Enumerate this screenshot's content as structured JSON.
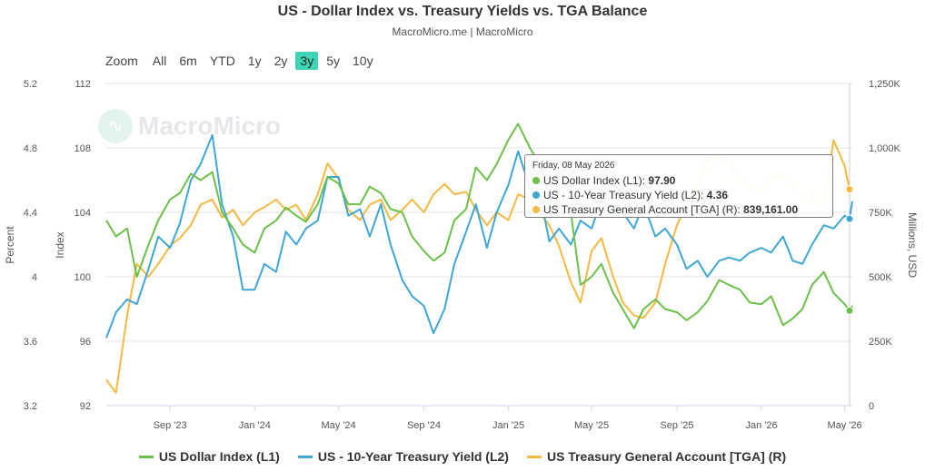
{
  "header": {
    "title": "US - Dollar Index vs. Treasury Yields vs. TGA Balance",
    "subtitle": "MacroMicro.me | MacroMicro"
  },
  "range_selector": {
    "zoom_label": "Zoom",
    "buttons": [
      "All",
      "6m",
      "YTD",
      "1y",
      "2y",
      "3y",
      "5y",
      "10y"
    ],
    "selected": "3y"
  },
  "watermark": {
    "text": "MacroMicro"
  },
  "tooltip": {
    "date": "Friday, 08 May 2026",
    "rows": [
      {
        "label": "US Dollar Index (L1):",
        "value": "97.90",
        "color": "#6cc04a"
      },
      {
        "label": "US - 10-Year Treasury Yield (L2):",
        "value": "4.36",
        "color": "#3fa7d6"
      },
      {
        "label": "US Treasury General Account [TGA] (R):",
        "value": "839,161.00",
        "color": "#f5b942"
      }
    ]
  },
  "legend": [
    {
      "label": "US Dollar Index (L1)",
      "color": "#6cc04a"
    },
    {
      "label": "US - 10-Year Treasury Yield (L2)",
      "color": "#3fa7d6"
    },
    {
      "label": "US Treasury General Account [TGA] (R)",
      "color": "#f5b942"
    }
  ],
  "chart_data": {
    "type": "line",
    "title": "US - Dollar Index vs. Treasury Yields vs. TGA Balance",
    "x_range": [
      "2023-06-01",
      "2026-05-12"
    ],
    "x_ticks": [
      {
        "date": "2023-09-01",
        "label": "Sep '23"
      },
      {
        "date": "2024-01-01",
        "label": "Jan '24"
      },
      {
        "date": "2024-05-01",
        "label": "May '24"
      },
      {
        "date": "2024-09-01",
        "label": "Sep '24"
      },
      {
        "date": "2025-01-01",
        "label": "Jan '25"
      },
      {
        "date": "2025-05-01",
        "label": "May '25"
      },
      {
        "date": "2025-09-01",
        "label": "Sep '25"
      },
      {
        "date": "2026-01-01",
        "label": "Jan '26"
      },
      {
        "date": "2026-05-01",
        "label": "May '26"
      }
    ],
    "axes": {
      "y_percent": {
        "label": "Percent",
        "min": 3.2,
        "max": 5.2,
        "ticks": [
          "3.2",
          "3.6",
          "4",
          "4.4",
          "4.8",
          "5.2"
        ]
      },
      "y_index": {
        "label": "Index",
        "min": 92,
        "max": 112,
        "ticks": [
          "92",
          "96",
          "100",
          "104",
          "108",
          "112"
        ]
      },
      "y_right": {
        "label": "Millions, USD",
        "min": 0,
        "max": 1250000,
        "ticks": [
          "0",
          "250K",
          "500K",
          "750K",
          "1,000K",
          "1,250K"
        ]
      }
    },
    "grid": true,
    "legend_position": "bottom",
    "series": [
      {
        "name": "US Dollar Index (L1)",
        "axis": "y_index",
        "color": "#6cc04a",
        "points": [
          [
            "2023-06-01",
            103.5
          ],
          [
            "2023-06-15",
            102.5
          ],
          [
            "2023-07-01",
            103.0
          ],
          [
            "2023-07-15",
            100.0
          ],
          [
            "2023-08-01",
            102.0
          ],
          [
            "2023-08-15",
            103.5
          ],
          [
            "2023-09-01",
            104.8
          ],
          [
            "2023-09-15",
            105.2
          ],
          [
            "2023-10-01",
            106.4
          ],
          [
            "2023-10-15",
            106.0
          ],
          [
            "2023-11-01",
            106.5
          ],
          [
            "2023-11-15",
            104.0
          ],
          [
            "2023-12-01",
            103.0
          ],
          [
            "2023-12-15",
            102.0
          ],
          [
            "2024-01-01",
            101.5
          ],
          [
            "2024-01-15",
            103.0
          ],
          [
            "2024-02-01",
            103.5
          ],
          [
            "2024-02-15",
            104.3
          ],
          [
            "2024-03-01",
            103.8
          ],
          [
            "2024-03-15",
            103.4
          ],
          [
            "2024-04-01",
            104.5
          ],
          [
            "2024-04-15",
            106.2
          ],
          [
            "2024-05-01",
            105.8
          ],
          [
            "2024-05-15",
            104.5
          ],
          [
            "2024-06-01",
            104.5
          ],
          [
            "2024-06-15",
            105.6
          ],
          [
            "2024-07-01",
            105.2
          ],
          [
            "2024-07-15",
            104.2
          ],
          [
            "2024-08-01",
            104.0
          ],
          [
            "2024-08-15",
            102.5
          ],
          [
            "2024-09-01",
            101.6
          ],
          [
            "2024-09-15",
            101.0
          ],
          [
            "2024-10-01",
            101.5
          ],
          [
            "2024-10-15",
            103.5
          ],
          [
            "2024-11-01",
            104.2
          ],
          [
            "2024-11-15",
            106.8
          ],
          [
            "2024-12-01",
            106.0
          ],
          [
            "2024-12-15",
            107.0
          ],
          [
            "2025-01-01",
            108.5
          ],
          [
            "2025-01-15",
            109.5
          ],
          [
            "2025-02-01",
            108.0
          ],
          [
            "2025-02-15",
            107.0
          ],
          [
            "2025-03-01",
            105.0
          ],
          [
            "2025-03-15",
            103.8
          ],
          [
            "2025-04-01",
            104.0
          ],
          [
            "2025-04-15",
            99.5
          ],
          [
            "2025-05-01",
            100.0
          ],
          [
            "2025-05-15",
            100.8
          ],
          [
            "2025-06-01",
            99.0
          ],
          [
            "2025-06-15",
            98.0
          ],
          [
            "2025-07-01",
            96.8
          ],
          [
            "2025-07-15",
            98.0
          ],
          [
            "2025-08-01",
            98.6
          ],
          [
            "2025-08-15",
            98.0
          ],
          [
            "2025-09-01",
            97.8
          ],
          [
            "2025-09-15",
            97.3
          ],
          [
            "2025-10-01",
            97.8
          ],
          [
            "2025-10-15",
            98.5
          ],
          [
            "2025-11-01",
            99.8
          ],
          [
            "2025-11-15",
            99.5
          ],
          [
            "2025-12-01",
            99.2
          ],
          [
            "2025-12-15",
            98.4
          ],
          [
            "2026-01-01",
            98.3
          ],
          [
            "2026-01-15",
            98.8
          ],
          [
            "2026-02-01",
            97.0
          ],
          [
            "2026-02-15",
            97.4
          ],
          [
            "2026-03-01",
            98.0
          ],
          [
            "2026-03-15",
            99.5
          ],
          [
            "2026-04-01",
            100.3
          ],
          [
            "2026-04-15",
            99.0
          ],
          [
            "2026-05-01",
            98.3
          ],
          [
            "2026-05-08",
            97.9
          ],
          [
            "2026-05-12",
            98.2
          ]
        ]
      },
      {
        "name": "US - 10-Year Treasury Yield (L2)",
        "axis": "y_percent",
        "color": "#3fa7d6",
        "points": [
          [
            "2023-06-01",
            3.62
          ],
          [
            "2023-06-15",
            3.78
          ],
          [
            "2023-07-01",
            3.86
          ],
          [
            "2023-07-15",
            3.83
          ],
          [
            "2023-08-01",
            4.05
          ],
          [
            "2023-08-15",
            4.25
          ],
          [
            "2023-09-01",
            4.18
          ],
          [
            "2023-09-15",
            4.33
          ],
          [
            "2023-10-01",
            4.6
          ],
          [
            "2023-10-15",
            4.7
          ],
          [
            "2023-11-01",
            4.88
          ],
          [
            "2023-11-15",
            4.45
          ],
          [
            "2023-12-01",
            4.25
          ],
          [
            "2023-12-15",
            3.92
          ],
          [
            "2024-01-01",
            3.92
          ],
          [
            "2024-01-15",
            4.08
          ],
          [
            "2024-02-01",
            4.03
          ],
          [
            "2024-02-15",
            4.28
          ],
          [
            "2024-03-01",
            4.2
          ],
          [
            "2024-03-15",
            4.3
          ],
          [
            "2024-04-01",
            4.35
          ],
          [
            "2024-04-15",
            4.62
          ],
          [
            "2024-05-01",
            4.62
          ],
          [
            "2024-05-15",
            4.38
          ],
          [
            "2024-06-01",
            4.42
          ],
          [
            "2024-06-15",
            4.25
          ],
          [
            "2024-07-01",
            4.45
          ],
          [
            "2024-07-15",
            4.2
          ],
          [
            "2024-08-01",
            3.98
          ],
          [
            "2024-08-15",
            3.88
          ],
          [
            "2024-09-01",
            3.82
          ],
          [
            "2024-09-15",
            3.65
          ],
          [
            "2024-10-01",
            3.8
          ],
          [
            "2024-10-15",
            4.08
          ],
          [
            "2024-11-01",
            4.28
          ],
          [
            "2024-11-15",
            4.45
          ],
          [
            "2024-12-01",
            4.18
          ],
          [
            "2024-12-15",
            4.4
          ],
          [
            "2025-01-01",
            4.57
          ],
          [
            "2025-01-15",
            4.78
          ],
          [
            "2025-02-01",
            4.55
          ],
          [
            "2025-02-15",
            4.52
          ],
          [
            "2025-03-01",
            4.22
          ],
          [
            "2025-03-15",
            4.3
          ],
          [
            "2025-04-01",
            4.2
          ],
          [
            "2025-04-15",
            4.35
          ],
          [
            "2025-05-01",
            4.3
          ],
          [
            "2025-05-15",
            4.48
          ],
          [
            "2025-06-01",
            4.42
          ],
          [
            "2025-06-15",
            4.4
          ],
          [
            "2025-07-01",
            4.3
          ],
          [
            "2025-07-15",
            4.45
          ],
          [
            "2025-08-01",
            4.25
          ],
          [
            "2025-08-15",
            4.3
          ],
          [
            "2025-09-01",
            4.2
          ],
          [
            "2025-09-15",
            4.05
          ],
          [
            "2025-10-01",
            4.1
          ],
          [
            "2025-10-15",
            4.0
          ],
          [
            "2025-11-01",
            4.1
          ],
          [
            "2025-11-15",
            4.12
          ],
          [
            "2025-12-01",
            4.1
          ],
          [
            "2025-12-15",
            4.15
          ],
          [
            "2026-01-01",
            4.18
          ],
          [
            "2026-01-15",
            4.15
          ],
          [
            "2026-02-01",
            4.25
          ],
          [
            "2026-02-15",
            4.1
          ],
          [
            "2026-03-01",
            4.08
          ],
          [
            "2026-03-15",
            4.2
          ],
          [
            "2026-04-01",
            4.32
          ],
          [
            "2026-04-15",
            4.3
          ],
          [
            "2026-05-01",
            4.38
          ],
          [
            "2026-05-08",
            4.36
          ],
          [
            "2026-05-12",
            4.47
          ]
        ]
      },
      {
        "name": "US Treasury General Account [TGA] (R)",
        "axis": "y_right",
        "color": "#f5b942",
        "points": [
          [
            "2023-06-01",
            100000
          ],
          [
            "2023-06-15",
            50000
          ],
          [
            "2023-07-01",
            350000
          ],
          [
            "2023-07-15",
            550000
          ],
          [
            "2023-08-01",
            500000
          ],
          [
            "2023-08-15",
            550000
          ],
          [
            "2023-09-01",
            620000
          ],
          [
            "2023-09-15",
            650000
          ],
          [
            "2023-10-01",
            700000
          ],
          [
            "2023-10-15",
            780000
          ],
          [
            "2023-11-01",
            800000
          ],
          [
            "2023-11-15",
            730000
          ],
          [
            "2023-12-01",
            760000
          ],
          [
            "2023-12-15",
            700000
          ],
          [
            "2024-01-01",
            750000
          ],
          [
            "2024-01-15",
            770000
          ],
          [
            "2024-02-01",
            800000
          ],
          [
            "2024-02-15",
            760000
          ],
          [
            "2024-03-01",
            780000
          ],
          [
            "2024-03-15",
            720000
          ],
          [
            "2024-04-01",
            820000
          ],
          [
            "2024-04-15",
            940000
          ],
          [
            "2024-05-01",
            880000
          ],
          [
            "2024-05-15",
            760000
          ],
          [
            "2024-06-01",
            720000
          ],
          [
            "2024-06-15",
            780000
          ],
          [
            "2024-07-01",
            800000
          ],
          [
            "2024-07-15",
            720000
          ],
          [
            "2024-08-01",
            760000
          ],
          [
            "2024-08-15",
            800000
          ],
          [
            "2024-09-01",
            750000
          ],
          [
            "2024-09-15",
            820000
          ],
          [
            "2024-10-01",
            860000
          ],
          [
            "2024-10-15",
            820000
          ],
          [
            "2024-11-01",
            830000
          ],
          [
            "2024-11-15",
            760000
          ],
          [
            "2024-12-01",
            700000
          ],
          [
            "2024-12-15",
            750000
          ],
          [
            "2025-01-01",
            720000
          ],
          [
            "2025-01-15",
            820000
          ],
          [
            "2025-02-01",
            800000
          ],
          [
            "2025-02-15",
            750000
          ],
          [
            "2025-03-01",
            700000
          ],
          [
            "2025-03-15",
            620000
          ],
          [
            "2025-04-01",
            480000
          ],
          [
            "2025-04-15",
            400000
          ],
          [
            "2025-05-01",
            600000
          ],
          [
            "2025-05-15",
            650000
          ],
          [
            "2025-06-01",
            500000
          ],
          [
            "2025-06-15",
            400000
          ],
          [
            "2025-07-01",
            350000
          ],
          [
            "2025-07-15",
            340000
          ],
          [
            "2025-08-01",
            400000
          ],
          [
            "2025-08-15",
            550000
          ],
          [
            "2025-09-01",
            700000
          ],
          [
            "2025-09-15",
            780000
          ],
          [
            "2025-10-01",
            860000
          ],
          [
            "2025-10-15",
            950000
          ],
          [
            "2025-11-01",
            960000
          ],
          [
            "2025-11-15",
            940000
          ],
          [
            "2025-12-01",
            880000
          ],
          [
            "2025-12-15",
            850000
          ],
          [
            "2026-01-01",
            830000
          ],
          [
            "2026-01-15",
            880000
          ],
          [
            "2026-02-01",
            900000
          ],
          [
            "2026-02-15",
            860000
          ],
          [
            "2026-03-01",
            820000
          ],
          [
            "2026-03-15",
            800000
          ],
          [
            "2026-04-01",
            780000
          ],
          [
            "2026-04-15",
            1030000
          ],
          [
            "2026-05-01",
            930000
          ],
          [
            "2026-05-08",
            839161
          ],
          [
            "2026-05-12",
            840000
          ]
        ]
      }
    ]
  }
}
